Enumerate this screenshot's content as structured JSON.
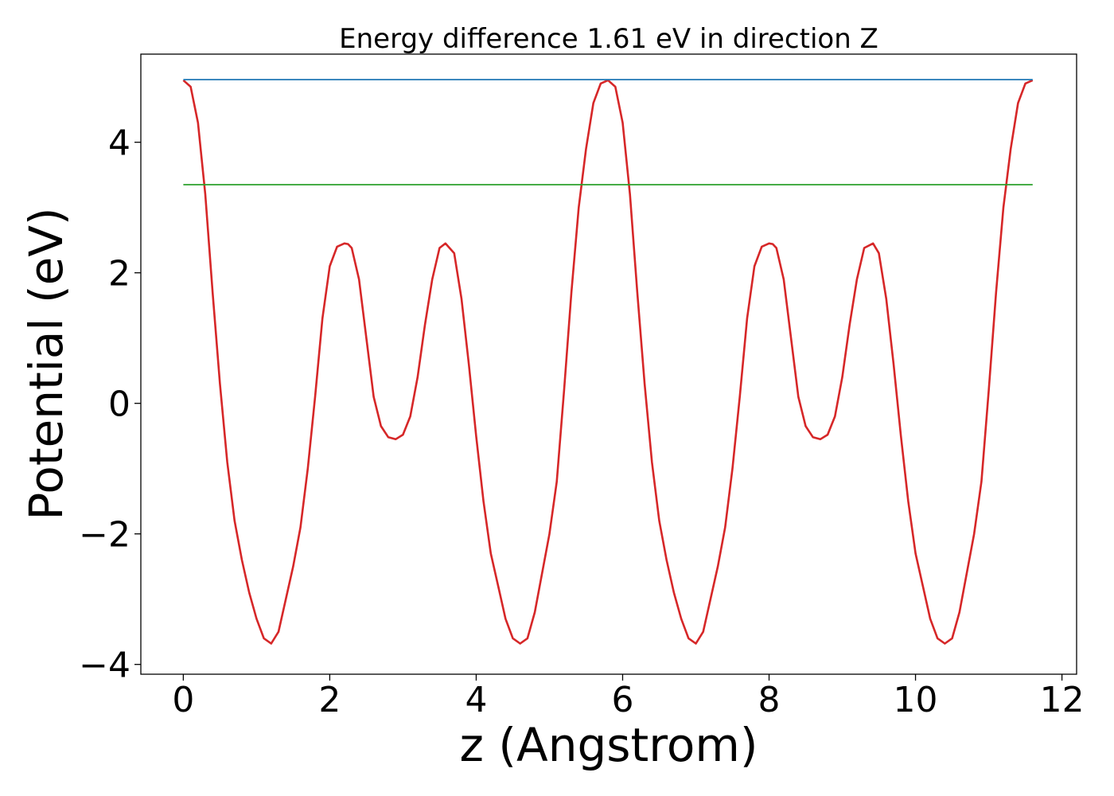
{
  "chart_data": {
    "type": "line",
    "title": "Energy difference 1.61 eV in direction Z",
    "xlabel": "z (Angstrom)",
    "ylabel": "Potential (eV)",
    "xlim": [
      -0.58,
      12.2
    ],
    "ylim": [
      -4.15,
      5.35
    ],
    "xticks": [
      0,
      2,
      4,
      6,
      8,
      10,
      12
    ],
    "xtick_labels": [
      "0",
      "2",
      "4",
      "6",
      "8",
      "10",
      "12"
    ],
    "yticks": [
      -4,
      -2,
      0,
      2,
      4
    ],
    "ytick_labels": [
      "−4",
      "−2",
      "0",
      "2",
      "4"
    ],
    "grid": false,
    "series": [
      {
        "color": "#d62728",
        "x": [
          0.0,
          0.1,
          0.2,
          0.3,
          0.4,
          0.5,
          0.6,
          0.7,
          0.8,
          0.9,
          1.0,
          1.1,
          1.2,
          1.3,
          1.4,
          1.5,
          1.6,
          1.7,
          1.8,
          1.9,
          2.0,
          2.1,
          2.2,
          2.25,
          2.3,
          2.4,
          2.5,
          2.6,
          2.7,
          2.8,
          2.9,
          3.0,
          3.1,
          3.2,
          3.3,
          3.4,
          3.5,
          3.58,
          3.7,
          3.8,
          3.9,
          4.0,
          4.1,
          4.2,
          4.3,
          4.4,
          4.5,
          4.6,
          4.7,
          4.8,
          4.9,
          5.0,
          5.1,
          5.2,
          5.3,
          5.4,
          5.5,
          5.6,
          5.7,
          5.8,
          5.9,
          6.0,
          6.1,
          6.2,
          6.3,
          6.4,
          6.5,
          6.6,
          6.7,
          6.8,
          6.9,
          7.0,
          7.1,
          7.2,
          7.3,
          7.4,
          7.5,
          7.6,
          7.7,
          7.8,
          7.9,
          8.0,
          8.05,
          8.1,
          8.2,
          8.3,
          8.4,
          8.5,
          8.6,
          8.7,
          8.8,
          8.9,
          9.0,
          9.1,
          9.2,
          9.3,
          9.42,
          9.5,
          9.6,
          9.7,
          9.8,
          9.9,
          10.0,
          10.1,
          10.2,
          10.3,
          10.4,
          10.5,
          10.6,
          10.7,
          10.8,
          10.9,
          11.0,
          11.1,
          11.2,
          11.3,
          11.4,
          11.5,
          11.6
        ],
        "y": [
          4.95,
          4.85,
          4.3,
          3.2,
          1.7,
          0.3,
          -0.9,
          -1.8,
          -2.4,
          -2.9,
          -3.3,
          -3.6,
          -3.68,
          -3.5,
          -3.0,
          -2.5,
          -1.9,
          -1.0,
          0.1,
          1.3,
          2.1,
          2.4,
          2.45,
          2.44,
          2.38,
          1.9,
          1.0,
          0.1,
          -0.35,
          -0.52,
          -0.55,
          -0.48,
          -0.2,
          0.4,
          1.2,
          1.9,
          2.38,
          2.45,
          2.3,
          1.6,
          0.6,
          -0.5,
          -1.5,
          -2.3,
          -2.8,
          -3.3,
          -3.6,
          -3.68,
          -3.6,
          -3.2,
          -2.6,
          -2.0,
          -1.2,
          0.2,
          1.7,
          3.0,
          3.9,
          4.6,
          4.9,
          4.95,
          4.85,
          4.3,
          3.2,
          1.7,
          0.3,
          -0.9,
          -1.8,
          -2.4,
          -2.9,
          -3.3,
          -3.6,
          -3.68,
          -3.5,
          -3.0,
          -2.5,
          -1.9,
          -1.0,
          0.1,
          1.3,
          2.1,
          2.4,
          2.45,
          2.44,
          2.38,
          1.9,
          1.0,
          0.1,
          -0.35,
          -0.52,
          -0.55,
          -0.48,
          -0.2,
          0.4,
          1.2,
          1.9,
          2.38,
          2.45,
          2.3,
          1.6,
          0.6,
          -0.5,
          -1.5,
          -2.3,
          -2.8,
          -3.3,
          -3.6,
          -3.68,
          -3.6,
          -3.2,
          -2.6,
          -2.0,
          -1.2,
          0.2,
          1.7,
          3.0,
          3.9,
          4.6,
          4.9,
          4.95
        ]
      },
      {
        "color": "#1f77b4",
        "x": [
          0.0,
          11.6
        ],
        "y": [
          4.96,
          4.96
        ]
      },
      {
        "color": "#2ca02c",
        "x": [
          0.0,
          11.6
        ],
        "y": [
          3.35,
          3.35
        ]
      }
    ]
  }
}
